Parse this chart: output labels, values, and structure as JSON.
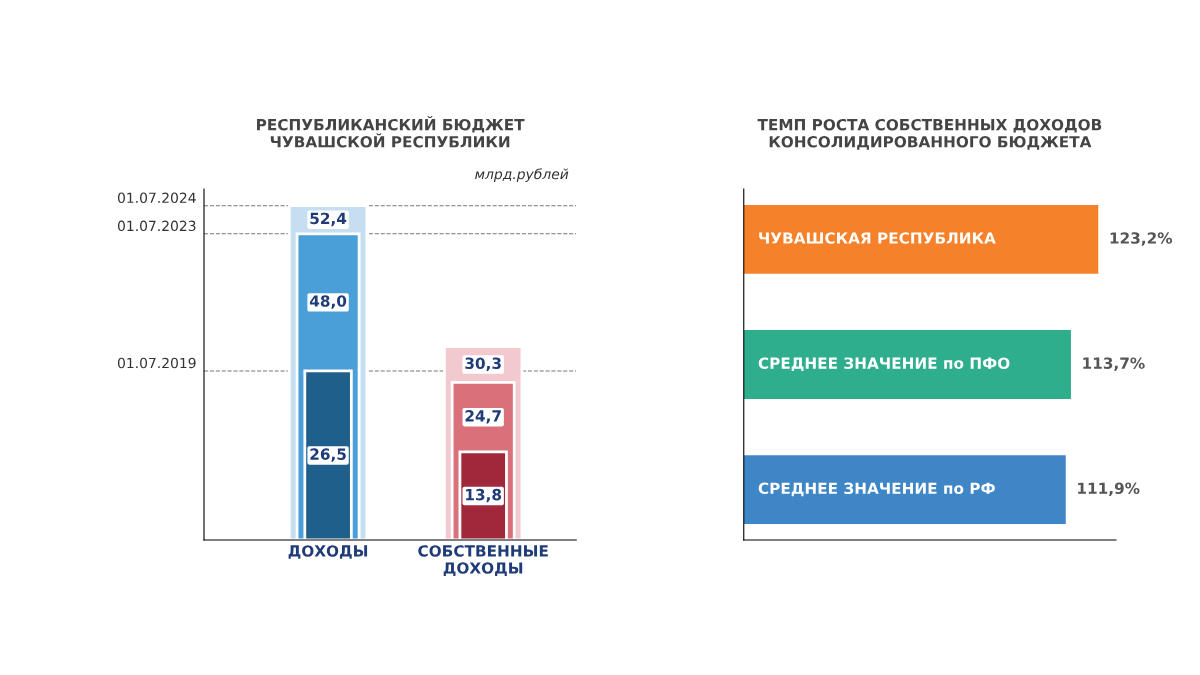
{
  "chart_data": [
    {
      "type": "bar",
      "title": "РЕСПУБЛИКАНСКИЙ БЮДЖЕТ\nЧУВАШСКОЙ РЕСПУБЛИКИ",
      "categories": [
        "ДОХОДЫ",
        "СОБСТВЕННЫЕ\nДОХОДЫ"
      ],
      "tick_labels": "x",
      "annotations": [
        "млрд.рублей"
      ],
      "series": [
        {
          "colors": [
            "#1f5f8b",
            "#a0283a"
          ],
          "values": [
            26.5,
            13.8
          ],
          "value_labels": [
            "26,5",
            "13,8"
          ]
        },
        {
          "colors": [
            "#4a9fd8",
            "#d9707a"
          ],
          "values": [
            48.0,
            24.7
          ],
          "value_labels": [
            "48,0",
            "24,7"
          ]
        },
        {
          "colors": [
            "#c5dff0",
            "#f2c9cf"
          ],
          "values": [
            52.4,
            30.3
          ],
          "value_labels": [
            "52,4",
            "30,3"
          ]
        }
      ],
      "ref_lines": [
        {
          "axis": "y",
          "value": 26.5,
          "label": "01.07.2019",
          "color": "#777777",
          "line_style": "dashed"
        },
        {
          "axis": "y",
          "value": 48.0,
          "label": "01.07.2023",
          "color": "#777777",
          "line_style": "dashed"
        },
        {
          "axis": "y",
          "value": 52.4,
          "label": "01.07.2024",
          "color": "#777777",
          "line_style": "dashed"
        }
      ]
    },
    {
      "type": "bar",
      "orientation": "horizontal",
      "title": "ТЕМП РОСТА СОБСТВЕННЫХ ДОХОДОВ\nКОНСОЛИДИРОВАННОГО БЮДЖЕТА",
      "categories": [
        "ЧУВАШСКАЯ РЕСПУБЛИКА",
        "СРЕДНЕЕ ЗНАЧЕНИЕ по ПФО",
        "СРЕДНЕЕ ЗНАЧЕНИЕ по РФ"
      ],
      "tick_labels": false,
      "colors": [
        "#f5822a",
        "#2fae8e",
        "#3f86c6"
      ],
      "values": [
        123.2,
        113.7,
        111.9
      ],
      "value_labels": [
        "123,2%",
        "113,7%",
        "111,9%"
      ]
    }
  ]
}
